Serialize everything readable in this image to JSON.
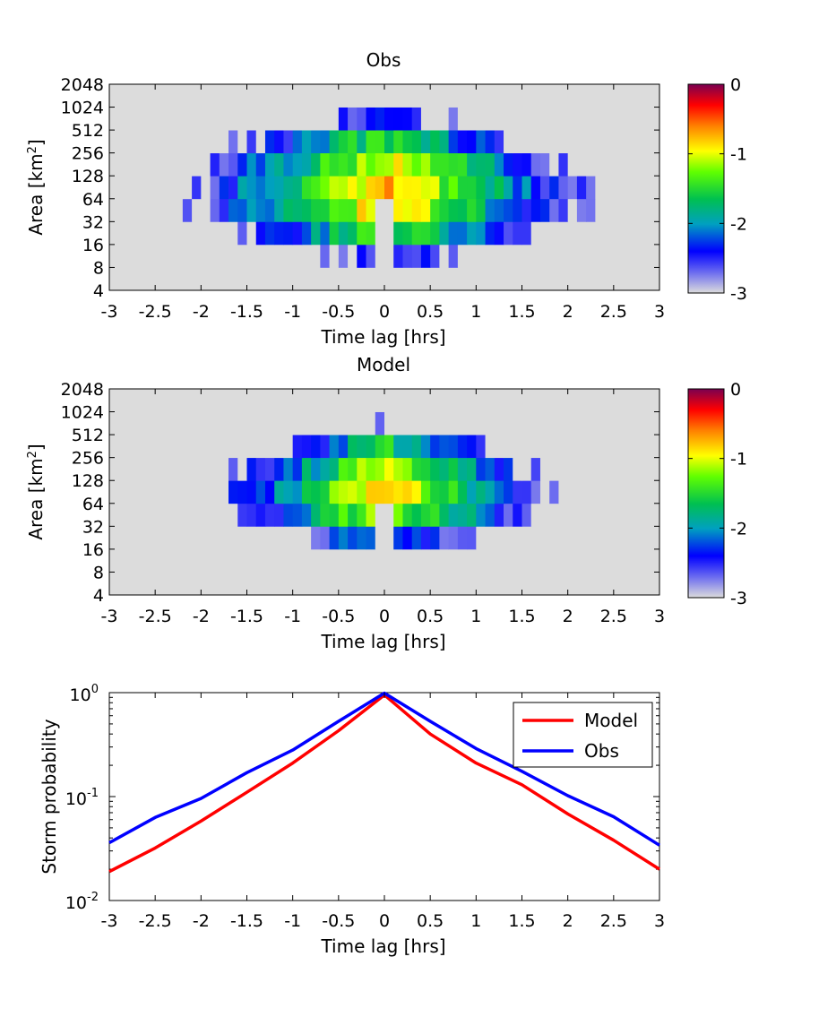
{
  "chart_data": [
    {
      "type": "heatmap",
      "title": "Obs",
      "xlabel": "Time lag [hrs]",
      "ylabel": "Area [km",
      "ylabel_sup": "2",
      "ylabel_end": "]",
      "xlim": [
        -3,
        3
      ],
      "xticks": [
        "-3",
        "-2.5",
        "-2",
        "-1.5",
        "-1",
        "-0.5",
        "0",
        "0.5",
        "1",
        "1.5",
        "2",
        "2.5",
        "3"
      ],
      "yticks": [
        "4",
        "8",
        "16",
        "32",
        "64",
        "128",
        "256",
        "512",
        "1024",
        "2048"
      ],
      "colorbar": {
        "range": [
          -3,
          0
        ],
        "ticks": [
          "0",
          "-1",
          "-2",
          "-3"
        ],
        "colormap": "jet-with-grey-low"
      },
      "center_value": -0.7,
      "background_value": -3,
      "note": "log10 probability; peak near lag 0 and area 64-128 km2, decreasing with |lag|"
    },
    {
      "type": "heatmap",
      "title": "Model",
      "xlabel": "Time lag [hrs]",
      "ylabel": "Area [km",
      "ylabel_sup": "2",
      "ylabel_end": "]",
      "xlim": [
        -3,
        3
      ],
      "xticks": [
        "-3",
        "-2.5",
        "-2",
        "-1.5",
        "-1",
        "-0.5",
        "0",
        "0.5",
        "1",
        "1.5",
        "2",
        "2.5",
        "3"
      ],
      "yticks": [
        "4",
        "8",
        "16",
        "32",
        "64",
        "128",
        "256",
        "512",
        "1024",
        "2048"
      ],
      "colorbar": {
        "range": [
          -3,
          0
        ],
        "ticks": [
          "0",
          "-1",
          "-2",
          "-3"
        ],
        "colormap": "jet-with-grey-low"
      },
      "center_value": -0.8,
      "background_value": -3
    },
    {
      "type": "line",
      "xlabel": "Time lag [hrs]",
      "ylabel": "Storm probability",
      "xlim": [
        -3,
        3
      ],
      "ylim": [
        0.01,
        1
      ],
      "yscale": "log",
      "xticks": [
        "-3",
        "-2.5",
        "-2",
        "-1.5",
        "-1",
        "-0.5",
        "0",
        "0.5",
        "1",
        "1.5",
        "2",
        "2.5",
        "3"
      ],
      "yticks": [
        {
          "base": "10",
          "exp": "0",
          "value": 1
        },
        {
          "base": "10",
          "exp": "-1",
          "value": 0.1
        },
        {
          "base": "10",
          "exp": "-2",
          "value": 0.01
        }
      ],
      "legend_position": "top-right",
      "x": [
        -3,
        -2.5,
        -2,
        -1.5,
        -1,
        -0.5,
        0,
        0.5,
        1,
        1.5,
        2,
        2.5,
        3
      ],
      "series": [
        {
          "name": "Model",
          "color": "#ff0000",
          "values": [
            0.019,
            0.032,
            0.058,
            0.11,
            0.21,
            0.43,
            0.95,
            0.4,
            0.21,
            0.13,
            0.068,
            0.038,
            0.02
          ]
        },
        {
          "name": "Obs",
          "color": "#0000ff",
          "values": [
            0.036,
            0.063,
            0.096,
            0.17,
            0.28,
            0.53,
            0.99,
            0.53,
            0.29,
            0.175,
            0.102,
            0.064,
            0.034
          ]
        }
      ]
    }
  ]
}
